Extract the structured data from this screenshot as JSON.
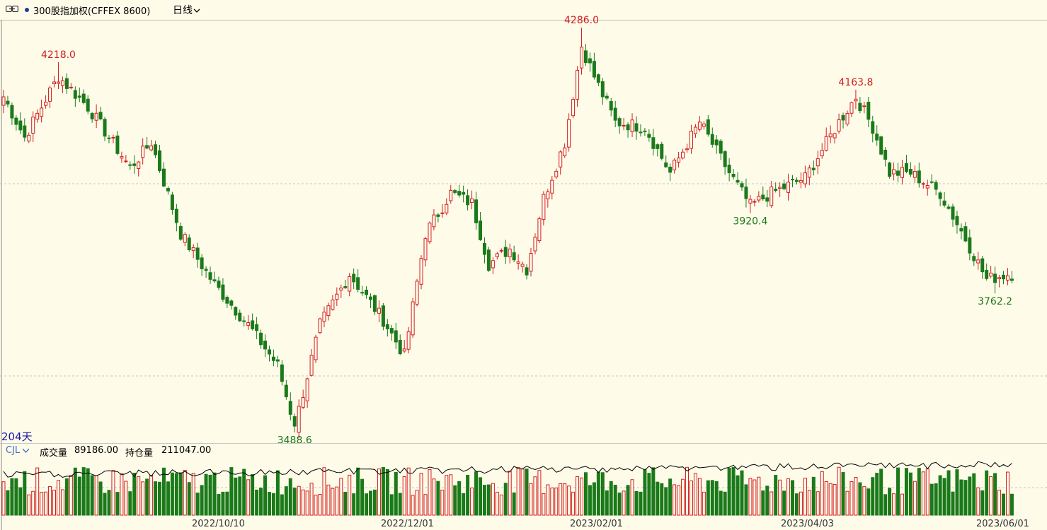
{
  "header": {
    "symbol": "300股指加权(CFFEX 8600)",
    "period": "日线"
  },
  "chart": {
    "days_label": "204天",
    "indicator": "CJL",
    "volume_label": "成交量",
    "volume_value": "89186.00",
    "open_interest_label": "持仓量",
    "open_interest_value": "211047.00",
    "dates": [
      "2022/10/10",
      "2022/12/01",
      "2023/02/01",
      "2023/04/03",
      "2023/06/01"
    ],
    "colors": {
      "up": "#d21e1e",
      "down": "#1a7a1a",
      "line": "#000000",
      "background": "#fffbe9"
    }
  },
  "chart_data": {
    "type": "candlestick",
    "ylim": [
      3470,
      4310
    ],
    "annotations": [
      {
        "label": "4218.0",
        "index": 13,
        "kind": "high"
      },
      {
        "label": "3488.6",
        "index": 69,
        "kind": "low"
      },
      {
        "label": "4286.0",
        "index": 137,
        "kind": "high"
      },
      {
        "label": "3920.4",
        "index": 177,
        "kind": "low"
      },
      {
        "label": "4163.8",
        "index": 202,
        "kind": "high"
      },
      {
        "label": "3762.2",
        "index": 235,
        "kind": "low"
      }
    ],
    "waypoints": [
      [
        0,
        4150
      ],
      [
        5,
        4070
      ],
      [
        13,
        4190
      ],
      [
        20,
        4130
      ],
      [
        30,
        4010
      ],
      [
        35,
        4060
      ],
      [
        42,
        3880
      ],
      [
        50,
        3780
      ],
      [
        58,
        3700
      ],
      [
        65,
        3620
      ],
      [
        69,
        3500
      ],
      [
        75,
        3700
      ],
      [
        82,
        3800
      ],
      [
        90,
        3710
      ],
      [
        95,
        3640
      ],
      [
        100,
        3880
      ],
      [
        106,
        3960
      ],
      [
        111,
        3940
      ],
      [
        115,
        3820
      ],
      [
        120,
        3850
      ],
      [
        124,
        3810
      ],
      [
        128,
        3950
      ],
      [
        133,
        4060
      ],
      [
        137,
        4250
      ],
      [
        140,
        4190
      ],
      [
        145,
        4100
      ],
      [
        152,
        4090
      ],
      [
        158,
        4000
      ],
      [
        165,
        4100
      ],
      [
        172,
        4000
      ],
      [
        177,
        3935
      ],
      [
        182,
        3960
      ],
      [
        190,
        3990
      ],
      [
        198,
        4100
      ],
      [
        202,
        4150
      ],
      [
        206,
        4090
      ],
      [
        210,
        4000
      ],
      [
        215,
        4000
      ],
      [
        222,
        3960
      ],
      [
        228,
        3870
      ],
      [
        233,
        3790
      ],
      [
        238,
        3800
      ]
    ]
  }
}
